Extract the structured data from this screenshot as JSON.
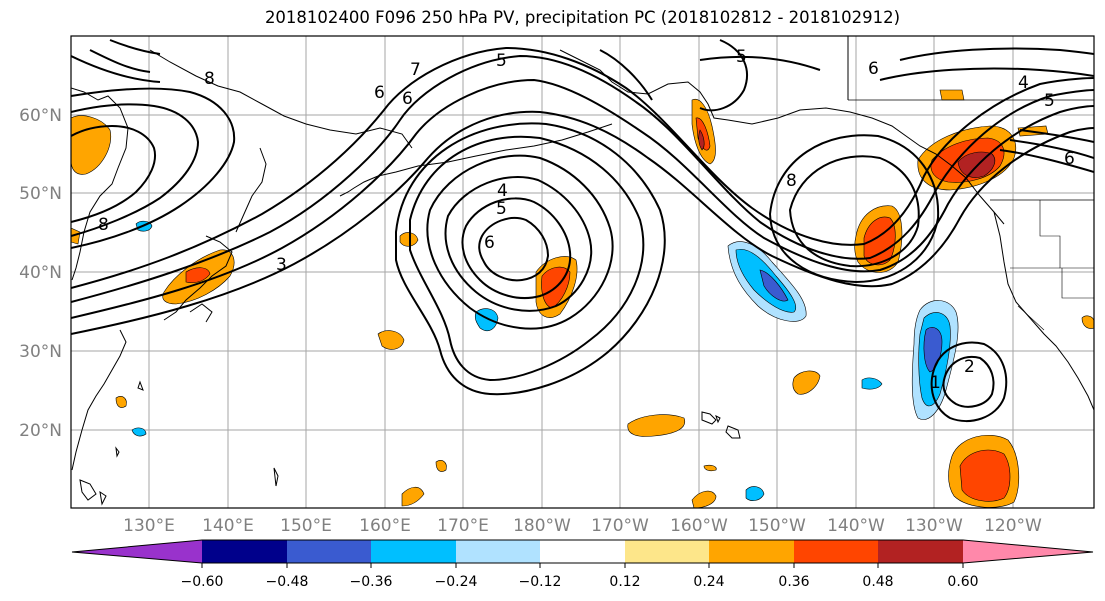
{
  "title": "2018102400 F096 250 hPa PV, precipitation PC (2018102812 - 2018102912)",
  "lat_labels": [
    "60°N",
    "50°N",
    "40°N",
    "30°N",
    "20°N"
  ],
  "lon_labels": [
    "130°E",
    "140°E",
    "150°E",
    "160°E",
    "170°E",
    "180°W",
    "170°W",
    "160°W",
    "150°W",
    "140°W",
    "130°W",
    "120°W"
  ],
  "colorbar": {
    "colors": [
      "#9932cc",
      "#00008b",
      "#3a5bd0",
      "#00bfff",
      "#b0e2ff",
      "#ffffff",
      "#fde68a",
      "#ffa500",
      "#ff4500",
      "#b22222",
      "#ff88aa"
    ],
    "tick_labels": [
      "−0.60",
      "−0.48",
      "−0.36",
      "−0.24",
      "−0.12",
      "0.12",
      "0.24",
      "0.36",
      "0.48",
      "0.60"
    ]
  },
  "contour_labels": [
    "7",
    "5",
    "5",
    "6",
    "8",
    "6",
    "6",
    "4",
    "5",
    "6",
    "8",
    "3",
    "4",
    "5",
    "6",
    "8",
    "2",
    "1"
  ]
}
